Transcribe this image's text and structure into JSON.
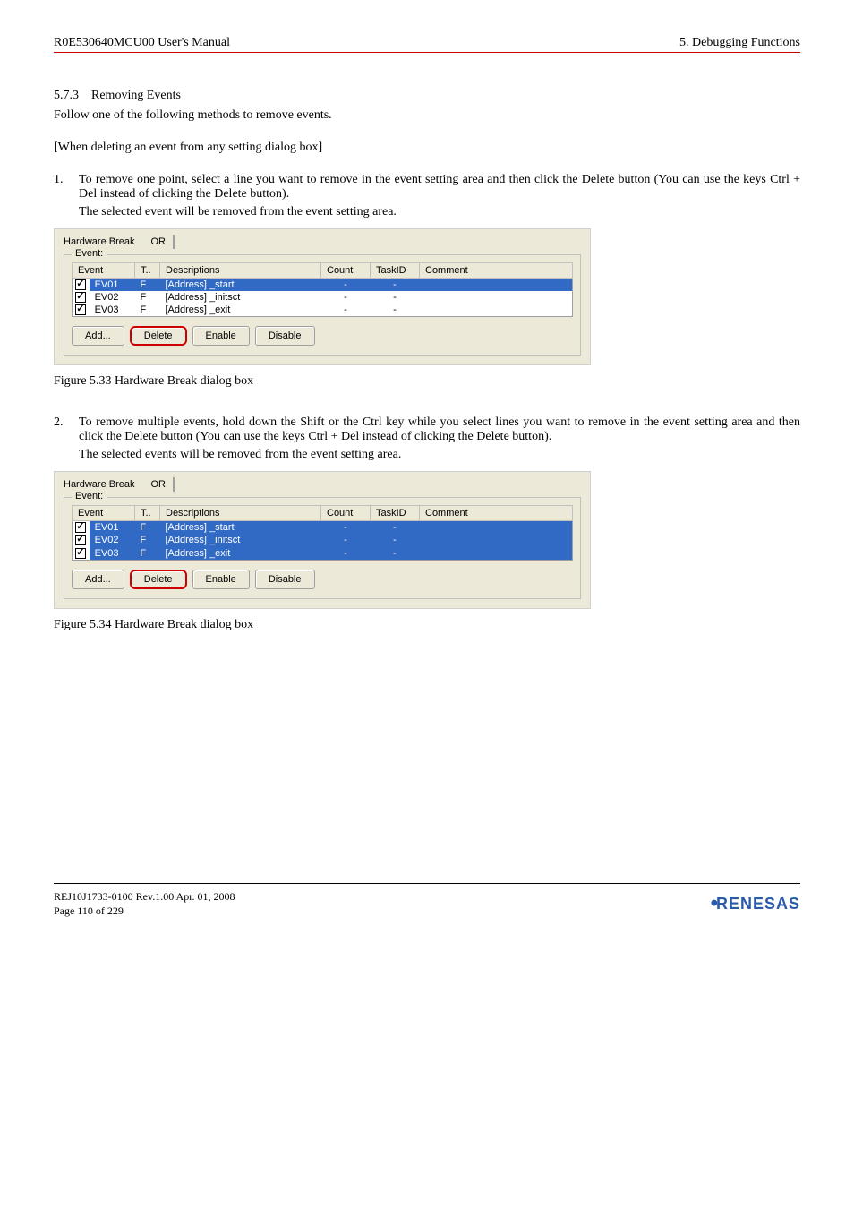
{
  "header": {
    "left": "R0E530640MCU00 User's Manual",
    "right": "5. Debugging Functions"
  },
  "section": {
    "number": "5.7.3",
    "title": "Removing Events",
    "intro": "Follow one of the following methods to remove events.",
    "subheading": "[When deleting an event from any setting dialog box]"
  },
  "item1": {
    "num": "1.",
    "text": "To remove one point, select a line you want to remove in the event setting area and then click the Delete button (You can use the keys Ctrl + Del instead of clicking the Delete button).",
    "text2": "The selected event will be removed from the event setting area."
  },
  "dialog1": {
    "title": "Hardware Break",
    "or": "OR",
    "group_label": "Event:",
    "headers": {
      "event": "Event",
      "t": "T..",
      "desc": "Descriptions",
      "count": "Count",
      "taskid": "TaskID",
      "comment": "Comment"
    },
    "rows": [
      {
        "checked": true,
        "ev": "EV01",
        "t": "F",
        "desc": "[Address] _start",
        "count": "-",
        "taskid": "-",
        "selected": true
      },
      {
        "checked": true,
        "ev": "EV02",
        "t": "F",
        "desc": "[Address] _initsct",
        "count": "-",
        "taskid": "-",
        "selected": false
      },
      {
        "checked": true,
        "ev": "EV03",
        "t": "F",
        "desc": "[Address] _exit",
        "count": "-",
        "taskid": "-",
        "selected": false
      }
    ],
    "buttons": {
      "add": "Add...",
      "delete": "Delete",
      "enable": "Enable",
      "disable": "Disable"
    }
  },
  "caption1": "Figure 5.33 Hardware Break dialog box",
  "item2": {
    "num": "2.",
    "text": "To remove multiple events, hold down the Shift or the Ctrl key while you select lines you want to remove in the event setting area and then click the Delete button (You can use the keys Ctrl + Del instead of clicking the Delete button).",
    "text2": "The selected events will be removed from the event setting area."
  },
  "dialog2": {
    "title": "Hardware Break",
    "or": "OR",
    "group_label": "Event:",
    "headers": {
      "event": "Event",
      "t": "T..",
      "desc": "Descriptions",
      "count": "Count",
      "taskid": "TaskID",
      "comment": "Comment"
    },
    "rows": [
      {
        "checked": true,
        "ev": "EV01",
        "t": "F",
        "desc": "[Address] _start",
        "count": "-",
        "taskid": "-",
        "selected": true
      },
      {
        "checked": true,
        "ev": "EV02",
        "t": "F",
        "desc": "[Address] _initsct",
        "count": "-",
        "taskid": "-",
        "selected": true
      },
      {
        "checked": true,
        "ev": "EV03",
        "t": "F",
        "desc": "[Address] _exit",
        "count": "-",
        "taskid": "-",
        "selected": true
      }
    ],
    "buttons": {
      "add": "Add...",
      "delete": "Delete",
      "enable": "Enable",
      "disable": "Disable"
    }
  },
  "caption2": "Figure 5.34 Hardware Break dialog box",
  "footer": {
    "line1": "REJ10J1733-0100   Rev.1.00   Apr. 01, 2008",
    "line2": "Page 110 of 229",
    "logo": "RENESAS"
  },
  "colors": {
    "header_underline": "#cc0000",
    "selection_bg": "#316ac5",
    "dialog_bg": "#ece9d8",
    "logo_color": "#2b5aa8",
    "highlight_border": "#cc0000"
  }
}
